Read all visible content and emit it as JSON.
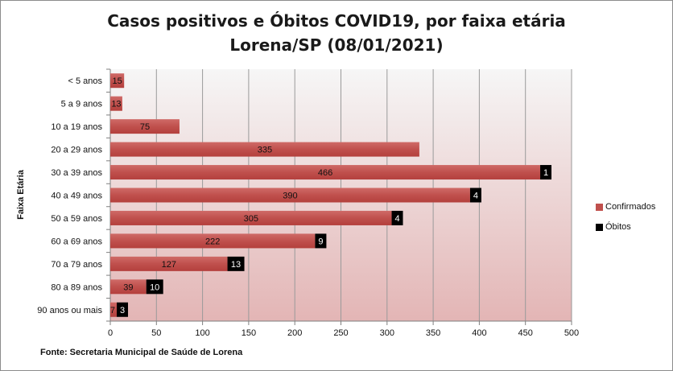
{
  "chart_data": {
    "type": "bar",
    "orientation": "horizontal",
    "title": "Casos positivos e Óbitos COVID19, por faixa etária",
    "subtitle": "Lorena/SP (08/01/2021)",
    "ylabel": "Faixa Etária",
    "xlabel": "",
    "categories": [
      "< 5 anos",
      "5 a 9 anos",
      "10 a 19 anos",
      "20 a 29 anos",
      "30 a 39 anos",
      "40 a 49 anos",
      "50 a 59 anos",
      "60 a 69 anos",
      "70 a 79 anos",
      "80 a 89 anos",
      "90 anos ou mais"
    ],
    "series": [
      {
        "name": "Confirmados",
        "color": "#c0504d",
        "values": [
          15,
          13,
          75,
          335,
          466,
          390,
          305,
          222,
          127,
          39,
          7
        ]
      },
      {
        "name": "Óbitos",
        "color": "#000000",
        "values": [
          0,
          0,
          0,
          0,
          1,
          4,
          4,
          9,
          13,
          10,
          3
        ],
        "labels": [
          "",
          "",
          "",
          "",
          "1",
          "4",
          "4",
          "9",
          "13",
          "10",
          "3"
        ]
      }
    ],
    "xlim": [
      0,
      500
    ],
    "xticks": [
      0,
      50,
      100,
      150,
      200,
      250,
      300,
      350,
      400,
      450,
      500
    ],
    "grid": true,
    "legend_position": "right",
    "source": "Fonte: Secretaria Municipal  de Saúde de Lorena"
  }
}
